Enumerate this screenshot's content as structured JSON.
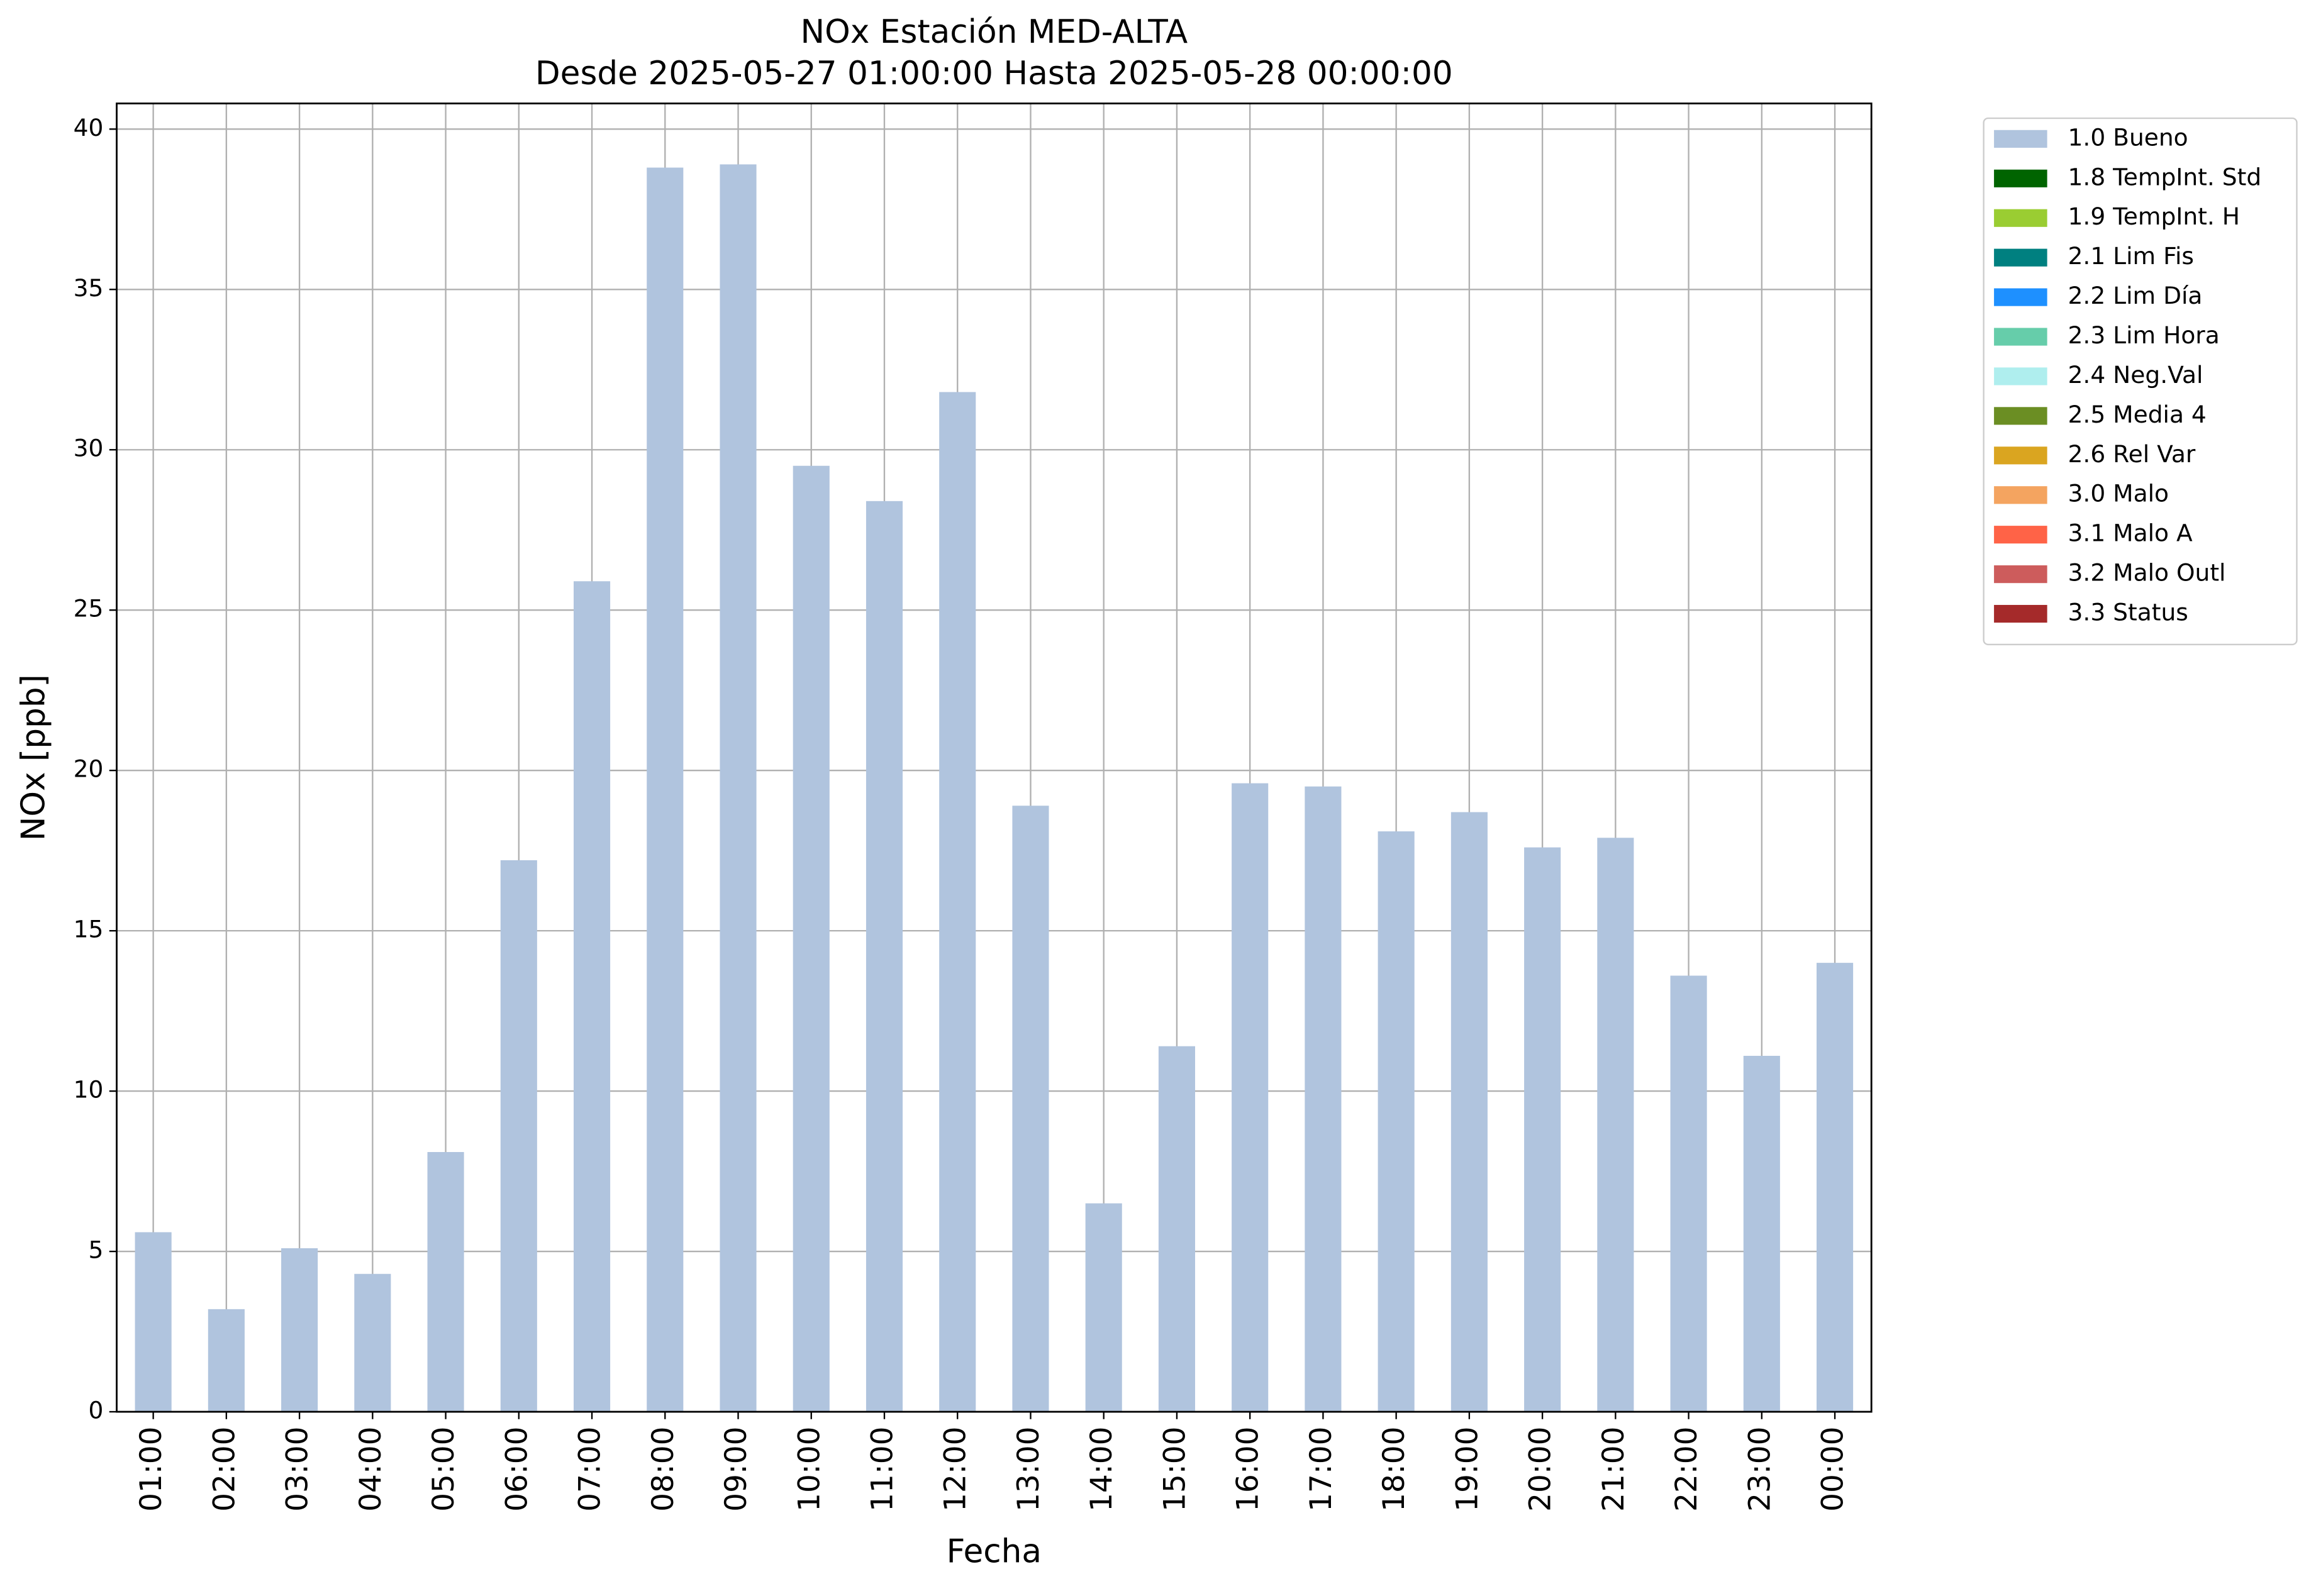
{
  "chart_data": {
    "type": "bar",
    "title": "NOx Estación MED-ALTA",
    "subtitle": "Desde 2025-05-27 01:00:00 Hasta 2025-05-28 00:00:00",
    "x_label": "Fecha",
    "y_label": "NOx [ppb]",
    "categories": [
      "01:00",
      "02:00",
      "03:00",
      "04:00",
      "05:00",
      "06:00",
      "07:00",
      "08:00",
      "09:00",
      "10:00",
      "11:00",
      "12:00",
      "13:00",
      "14:00",
      "15:00",
      "16:00",
      "17:00",
      "18:00",
      "19:00",
      "20:00",
      "21:00",
      "22:00",
      "23:00",
      "00:00"
    ],
    "series": [
      {
        "name": "1.0 Bueno",
        "color": "#b0c4de",
        "values": [
          5.6,
          3.2,
          5.1,
          4.3,
          8.1,
          17.2,
          25.9,
          38.8,
          38.9,
          29.5,
          28.4,
          31.8,
          18.9,
          6.5,
          11.4,
          19.6,
          19.5,
          18.1,
          18.7,
          17.6,
          17.9,
          13.6,
          11.1,
          14.0
        ]
      },
      {
        "name": "1.8 TempInt. Std",
        "color": "#006400",
        "values": [
          null,
          null,
          null,
          null,
          null,
          null,
          null,
          null,
          null,
          null,
          null,
          null,
          null,
          null,
          null,
          null,
          null,
          null,
          null,
          null,
          null,
          null,
          null,
          null
        ]
      },
      {
        "name": "1.9 TempInt. H",
        "color": "#9acd32",
        "values": [
          null,
          null,
          null,
          null,
          null,
          null,
          null,
          null,
          null,
          null,
          null,
          null,
          null,
          null,
          null,
          null,
          null,
          null,
          null,
          null,
          null,
          null,
          null,
          null
        ]
      },
      {
        "name": "2.1 Lim Fis",
        "color": "#008080",
        "values": [
          null,
          null,
          null,
          null,
          null,
          null,
          null,
          null,
          null,
          null,
          null,
          null,
          null,
          null,
          null,
          null,
          null,
          null,
          null,
          null,
          null,
          null,
          null,
          null
        ]
      },
      {
        "name": "2.2 Lim Día",
        "color": "#1e90ff",
        "values": [
          null,
          null,
          null,
          null,
          null,
          null,
          null,
          null,
          null,
          null,
          null,
          null,
          null,
          null,
          null,
          null,
          null,
          null,
          null,
          null,
          null,
          null,
          null,
          null
        ]
      },
      {
        "name": "2.3 Lim Hora",
        "color": "#66cdaa",
        "values": [
          null,
          null,
          null,
          null,
          null,
          null,
          null,
          null,
          null,
          null,
          null,
          null,
          null,
          null,
          null,
          null,
          null,
          null,
          null,
          null,
          null,
          null,
          null,
          null
        ]
      },
      {
        "name": "2.4 Neg.Val",
        "color": "#afeeee",
        "values": [
          null,
          null,
          null,
          null,
          null,
          null,
          null,
          null,
          null,
          null,
          null,
          null,
          null,
          null,
          null,
          null,
          null,
          null,
          null,
          null,
          null,
          null,
          null,
          null
        ]
      },
      {
        "name": "2.5 Media 4",
        "color": "#6b8e23",
        "values": [
          null,
          null,
          null,
          null,
          null,
          null,
          null,
          null,
          null,
          null,
          null,
          null,
          null,
          null,
          null,
          null,
          null,
          null,
          null,
          null,
          null,
          null,
          null,
          null
        ]
      },
      {
        "name": "2.6 Rel Var",
        "color": "#daa520",
        "values": [
          null,
          null,
          null,
          null,
          null,
          null,
          null,
          null,
          null,
          null,
          null,
          null,
          null,
          null,
          null,
          null,
          null,
          null,
          null,
          null,
          null,
          null,
          null,
          null
        ]
      },
      {
        "name": "3.0 Malo",
        "color": "#f4a460",
        "values": [
          null,
          null,
          null,
          null,
          null,
          null,
          null,
          null,
          null,
          null,
          null,
          null,
          null,
          null,
          null,
          null,
          null,
          null,
          null,
          null,
          null,
          null,
          null,
          null
        ]
      },
      {
        "name": "3.1 Malo A",
        "color": "#ff6347",
        "values": [
          null,
          null,
          null,
          null,
          null,
          null,
          null,
          null,
          null,
          null,
          null,
          null,
          null,
          null,
          null,
          null,
          null,
          null,
          null,
          null,
          null,
          null,
          null,
          null
        ]
      },
      {
        "name": "3.2 Malo Outl",
        "color": "#cd5c5c",
        "values": [
          null,
          null,
          null,
          null,
          null,
          null,
          null,
          null,
          null,
          null,
          null,
          null,
          null,
          null,
          null,
          null,
          null,
          null,
          null,
          null,
          null,
          null,
          null,
          null
        ]
      },
      {
        "name": "3.3 Status",
        "color": "#a52a2a",
        "values": [
          null,
          null,
          null,
          null,
          null,
          null,
          null,
          null,
          null,
          null,
          null,
          null,
          null,
          null,
          null,
          null,
          null,
          null,
          null,
          null,
          null,
          null,
          null,
          null
        ]
      }
    ],
    "ylim": [
      0,
      40.8
    ],
    "yticks": [
      0,
      5,
      10,
      15,
      20,
      25,
      30,
      35,
      40
    ],
    "grid": true,
    "legend": "outside-upper-right"
  }
}
